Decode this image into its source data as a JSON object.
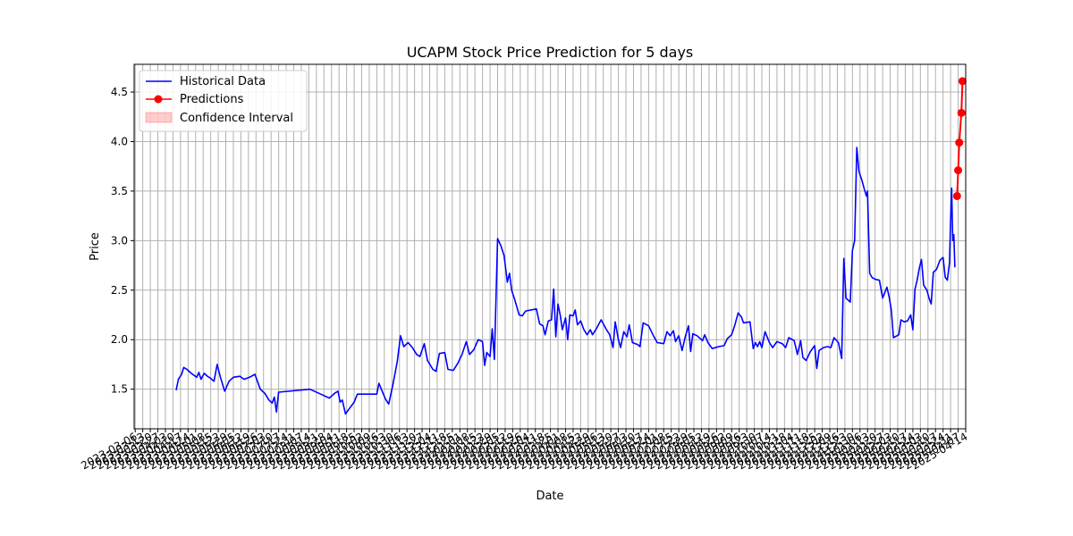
{
  "chart_data": {
    "type": "line",
    "title": "UCAPM Stock Price Prediction for 5 days",
    "xlabel": "Date",
    "ylabel": "Price",
    "ylim": [
      1.1,
      4.78
    ],
    "yticks": [
      1.5,
      2.0,
      2.5,
      3.0,
      3.5,
      4.0,
      4.5
    ],
    "ytick_labels": [
      "1.5",
      "2.0",
      "2.5",
      "3.0",
      "3.5",
      "4.0",
      "4.5"
    ],
    "xlim": [
      "2023-03-05",
      "2025-04-14"
    ],
    "x_tick_start": "2023-03-06",
    "x_tick_step_days": 7,
    "last_xtick_label": "2025-04-06",
    "grid": true,
    "legend": {
      "position": "top-left",
      "entries": [
        {
          "label": "Historical Data",
          "color": "#0000ff",
          "style": "line"
        },
        {
          "label": "Predictions",
          "color": "#ff0000",
          "style": "line-marker"
        },
        {
          "label": "Confidence Interval",
          "color": "#ff0000",
          "style": "patch"
        }
      ]
    },
    "series": [
      {
        "name": "Historical Data",
        "color": "#0000ff",
        "points": [
          [
            "2023-04-13",
            1.49
          ],
          [
            "2023-04-15",
            1.6
          ],
          [
            "2023-04-18",
            1.65
          ],
          [
            "2023-04-20",
            1.72
          ],
          [
            "2023-04-23",
            1.7
          ],
          [
            "2023-04-27",
            1.66
          ],
          [
            "2023-05-02",
            1.62
          ],
          [
            "2023-05-04",
            1.67
          ],
          [
            "2023-05-06",
            1.6
          ],
          [
            "2023-05-09",
            1.66
          ],
          [
            "2023-05-12",
            1.63
          ],
          [
            "2023-05-15",
            1.61
          ],
          [
            "2023-05-18",
            1.58
          ],
          [
            "2023-05-21",
            1.75
          ],
          [
            "2023-05-24",
            1.62
          ],
          [
            "2023-05-28",
            1.48
          ],
          [
            "2023-06-01",
            1.58
          ],
          [
            "2023-06-05",
            1.62
          ],
          [
            "2023-06-11",
            1.63
          ],
          [
            "2023-06-15",
            1.6
          ],
          [
            "2023-06-20",
            1.62
          ],
          [
            "2023-06-25",
            1.65
          ],
          [
            "2023-06-30",
            1.5
          ],
          [
            "2023-07-04",
            1.46
          ],
          [
            "2023-07-08",
            1.39
          ],
          [
            "2023-07-11",
            1.36
          ],
          [
            "2023-07-13",
            1.42
          ],
          [
            "2023-07-15",
            1.27
          ],
          [
            "2023-07-17",
            1.47
          ],
          [
            "2023-08-15",
            1.5
          ],
          [
            "2023-08-25",
            1.45
          ],
          [
            "2023-09-02",
            1.41
          ],
          [
            "2023-09-07",
            1.46
          ],
          [
            "2023-09-10",
            1.48
          ],
          [
            "2023-09-12",
            1.37
          ],
          [
            "2023-09-14",
            1.39
          ],
          [
            "2023-09-17",
            1.25
          ],
          [
            "2023-09-21",
            1.31
          ],
          [
            "2023-09-25",
            1.37
          ],
          [
            "2023-09-28",
            1.45
          ],
          [
            "2023-10-16",
            1.45
          ],
          [
            "2023-10-18",
            1.56
          ],
          [
            "2023-10-21",
            1.48
          ],
          [
            "2023-10-24",
            1.4
          ],
          [
            "2023-10-27",
            1.35
          ],
          [
            "2023-10-31",
            1.55
          ],
          [
            "2023-11-04",
            1.78
          ],
          [
            "2023-11-07",
            2.04
          ],
          [
            "2023-11-10",
            1.93
          ],
          [
            "2023-11-14",
            1.97
          ],
          [
            "2023-11-18",
            1.92
          ],
          [
            "2023-11-22",
            1.85
          ],
          [
            "2023-11-25",
            1.83
          ],
          [
            "2023-11-29",
            1.96
          ],
          [
            "2023-12-02",
            1.79
          ],
          [
            "2023-12-07",
            1.7
          ],
          [
            "2023-12-10",
            1.68
          ],
          [
            "2023-12-13",
            1.86
          ],
          [
            "2023-12-18",
            1.87
          ],
          [
            "2023-12-21",
            1.7
          ],
          [
            "2023-12-26",
            1.69
          ],
          [
            "2023-12-30",
            1.76
          ],
          [
            "2024-01-03",
            1.85
          ],
          [
            "2024-01-07",
            1.98
          ],
          [
            "2024-01-10",
            1.85
          ],
          [
            "2024-01-14",
            1.9
          ],
          [
            "2024-01-18",
            2.0
          ],
          [
            "2024-01-22",
            1.98
          ],
          [
            "2024-01-24",
            1.74
          ],
          [
            "2024-01-26",
            1.87
          ],
          [
            "2024-01-29",
            1.83
          ],
          [
            "2024-01-31",
            2.11
          ],
          [
            "2024-02-02",
            1.8
          ],
          [
            "2024-02-05",
            3.02
          ],
          [
            "2024-02-08",
            2.95
          ],
          [
            "2024-02-11",
            2.85
          ],
          [
            "2024-02-14",
            2.58
          ],
          [
            "2024-02-16",
            2.67
          ],
          [
            "2024-02-18",
            2.5
          ],
          [
            "2024-02-21",
            2.4
          ],
          [
            "2024-02-25",
            2.25
          ],
          [
            "2024-02-28",
            2.24
          ],
          [
            "2024-03-02",
            2.29
          ],
          [
            "2024-03-12",
            2.31
          ],
          [
            "2024-03-15",
            2.16
          ],
          [
            "2024-03-18",
            2.14
          ],
          [
            "2024-03-20",
            2.05
          ],
          [
            "2024-03-23",
            2.19
          ],
          [
            "2024-03-26",
            2.2
          ],
          [
            "2024-03-28",
            2.51
          ],
          [
            "2024-03-30",
            2.03
          ],
          [
            "2024-04-01",
            2.36
          ],
          [
            "2024-04-03",
            2.25
          ],
          [
            "2024-04-05",
            2.1
          ],
          [
            "2024-04-08",
            2.22
          ],
          [
            "2024-04-10",
            2.0
          ],
          [
            "2024-04-12",
            2.25
          ],
          [
            "2024-04-15",
            2.24
          ],
          [
            "2024-04-17",
            2.3
          ],
          [
            "2024-04-19",
            2.15
          ],
          [
            "2024-04-22",
            2.19
          ],
          [
            "2024-04-25",
            2.1
          ],
          [
            "2024-04-28",
            2.05
          ],
          [
            "2024-05-01",
            2.1
          ],
          [
            "2024-05-03",
            2.05
          ],
          [
            "2024-05-06",
            2.1
          ],
          [
            "2024-05-11",
            2.2
          ],
          [
            "2024-05-16",
            2.1
          ],
          [
            "2024-05-19",
            2.05
          ],
          [
            "2024-05-22",
            1.92
          ],
          [
            "2024-05-24",
            2.18
          ],
          [
            "2024-05-27",
            2.0
          ],
          [
            "2024-05-29",
            1.92
          ],
          [
            "2024-06-01",
            2.08
          ],
          [
            "2024-06-04",
            2.03
          ],
          [
            "2024-06-06",
            2.15
          ],
          [
            "2024-06-09",
            1.97
          ],
          [
            "2024-06-14",
            1.95
          ],
          [
            "2024-06-16",
            1.93
          ],
          [
            "2024-06-19",
            2.17
          ],
          [
            "2024-06-24",
            2.14
          ],
          [
            "2024-06-28",
            2.05
          ],
          [
            "2024-07-02",
            1.97
          ],
          [
            "2024-07-08",
            1.96
          ],
          [
            "2024-07-11",
            2.08
          ],
          [
            "2024-07-14",
            2.04
          ],
          [
            "2024-07-17",
            2.09
          ],
          [
            "2024-07-19",
            1.98
          ],
          [
            "2024-07-22",
            2.04
          ],
          [
            "2024-07-25",
            1.89
          ],
          [
            "2024-07-28",
            2.03
          ],
          [
            "2024-07-31",
            2.14
          ],
          [
            "2024-08-02",
            1.88
          ],
          [
            "2024-08-04",
            2.06
          ],
          [
            "2024-08-08",
            2.04
          ],
          [
            "2024-08-13",
            1.99
          ],
          [
            "2024-08-15",
            2.05
          ],
          [
            "2024-08-18",
            1.97
          ],
          [
            "2024-08-22",
            1.91
          ],
          [
            "2024-08-28",
            1.93
          ],
          [
            "2024-09-02",
            1.94
          ],
          [
            "2024-09-05",
            2.01
          ],
          [
            "2024-09-09",
            2.05
          ],
          [
            "2024-09-12",
            2.15
          ],
          [
            "2024-09-15",
            2.27
          ],
          [
            "2024-09-18",
            2.23
          ],
          [
            "2024-09-20",
            2.17
          ],
          [
            "2024-09-26",
            2.18
          ],
          [
            "2024-09-29",
            1.91
          ],
          [
            "2024-10-01",
            1.97
          ],
          [
            "2024-10-03",
            1.93
          ],
          [
            "2024-10-05",
            1.98
          ],
          [
            "2024-10-07",
            1.92
          ],
          [
            "2024-10-10",
            2.08
          ],
          [
            "2024-10-14",
            1.97
          ],
          [
            "2024-10-17",
            1.92
          ],
          [
            "2024-10-21",
            1.98
          ],
          [
            "2024-10-26",
            1.96
          ],
          [
            "2024-10-29",
            1.92
          ],
          [
            "2024-11-01",
            2.02
          ],
          [
            "2024-11-06",
            1.99
          ],
          [
            "2024-11-09",
            1.85
          ],
          [
            "2024-11-12",
            1.99
          ],
          [
            "2024-11-14",
            1.82
          ],
          [
            "2024-11-17",
            1.79
          ],
          [
            "2024-11-21",
            1.88
          ],
          [
            "2024-11-25",
            1.94
          ],
          [
            "2024-11-27",
            1.71
          ],
          [
            "2024-11-29",
            1.89
          ],
          [
            "2024-12-03",
            1.92
          ],
          [
            "2024-12-07",
            1.93
          ],
          [
            "2024-12-10",
            1.92
          ],
          [
            "2024-12-13",
            2.02
          ],
          [
            "2024-12-17",
            1.97
          ],
          [
            "2024-12-20",
            1.81
          ],
          [
            "2024-12-22",
            2.82
          ],
          [
            "2024-12-24",
            2.42
          ],
          [
            "2024-12-26",
            2.4
          ],
          [
            "2024-12-28",
            2.38
          ],
          [
            "2024-12-30",
            2.9
          ],
          [
            "2025-01-01",
            3.0
          ],
          [
            "2025-01-03",
            3.94
          ],
          [
            "2025-01-05",
            3.7
          ],
          [
            "2025-01-08",
            3.6
          ],
          [
            "2025-01-10",
            3.52
          ],
          [
            "2025-01-12",
            3.45
          ],
          [
            "2025-01-13",
            3.5
          ],
          [
            "2025-01-15",
            2.67
          ],
          [
            "2025-01-17",
            2.63
          ],
          [
            "2025-01-20",
            2.61
          ],
          [
            "2025-01-24",
            2.6
          ],
          [
            "2025-01-27",
            2.42
          ],
          [
            "2025-01-31",
            2.53
          ],
          [
            "2025-02-02",
            2.43
          ],
          [
            "2025-02-04",
            2.3
          ],
          [
            "2025-02-06",
            2.02
          ],
          [
            "2025-02-11",
            2.05
          ],
          [
            "2025-02-13",
            2.2
          ],
          [
            "2025-02-16",
            2.18
          ],
          [
            "2025-02-19",
            2.19
          ],
          [
            "2025-02-22",
            2.25
          ],
          [
            "2025-02-24",
            2.1
          ],
          [
            "2025-02-26",
            2.51
          ],
          [
            "2025-02-28",
            2.6
          ],
          [
            "2025-03-02",
            2.72
          ],
          [
            "2025-03-04",
            2.81
          ],
          [
            "2025-03-06",
            2.55
          ],
          [
            "2025-03-09",
            2.5
          ],
          [
            "2025-03-11",
            2.42
          ],
          [
            "2025-03-13",
            2.36
          ],
          [
            "2025-03-15",
            2.68
          ],
          [
            "2025-03-18",
            2.71
          ],
          [
            "2025-03-21",
            2.8
          ],
          [
            "2025-03-24",
            2.83
          ],
          [
            "2025-03-26",
            2.63
          ],
          [
            "2025-03-28",
            2.6
          ],
          [
            "2025-03-30",
            2.78
          ],
          [
            "2025-03-31",
            3.2
          ],
          [
            "2025-04-01",
            3.53
          ],
          [
            "2025-04-02",
            3.0
          ],
          [
            "2025-04-03",
            3.06
          ],
          [
            "2025-04-04",
            2.73
          ]
        ]
      },
      {
        "name": "Predictions",
        "color": "#ff0000",
        "points": [
          [
            "2025-04-06",
            3.45
          ],
          [
            "2025-04-07",
            3.71
          ],
          [
            "2025-04-08",
            3.99
          ],
          [
            "2025-04-10",
            4.29
          ],
          [
            "2025-04-11",
            4.61
          ]
        ]
      }
    ]
  }
}
